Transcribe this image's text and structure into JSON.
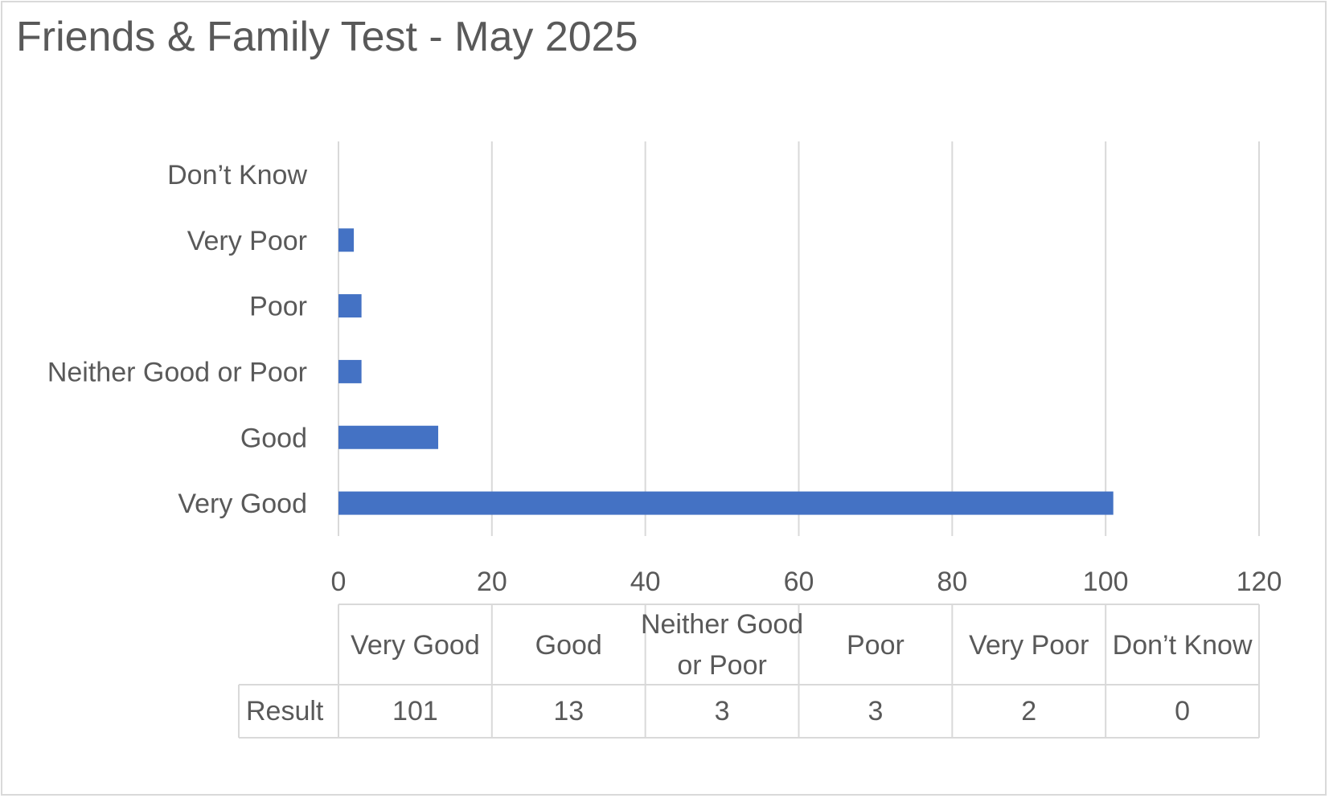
{
  "chart_data": {
    "type": "bar",
    "orientation": "horizontal",
    "title": "Friends & Family Test - May 2025",
    "categories": [
      "Very Good",
      "Good",
      "Neither Good or Poor",
      "Poor",
      "Very Poor",
      "Don’t Know"
    ],
    "table_headers": [
      "Very Good",
      "Good",
      "Neither Good or Poor",
      "Poor",
      "Very Poor",
      "Don’t Know"
    ],
    "series": [
      {
        "name": "Result",
        "values": [
          101,
          13,
          3,
          3,
          2,
          0
        ],
        "color": "#4472c4"
      }
    ],
    "xlim": [
      0,
      120
    ],
    "x_ticks": [
      0,
      20,
      40,
      60,
      80,
      100,
      120
    ],
    "x_tick_labels": [
      "0",
      "20",
      "40",
      "60",
      "80",
      "100",
      "120"
    ],
    "grid": true,
    "legend": "none",
    "data_table": true
  }
}
